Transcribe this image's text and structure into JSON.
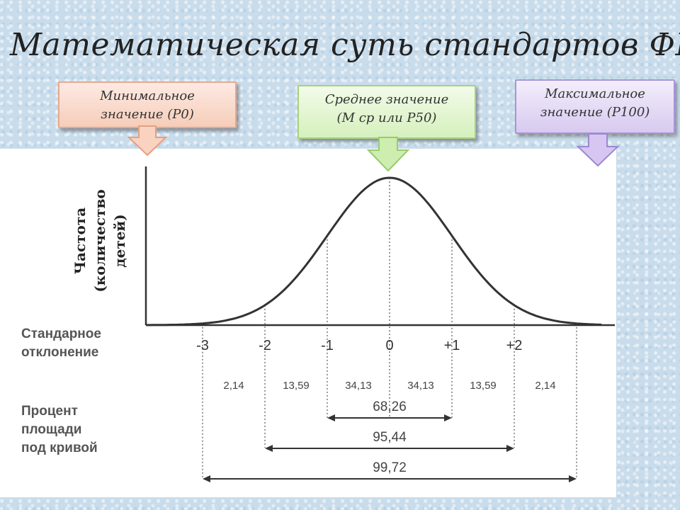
{
  "slide": {
    "title": "Математическая суть стандартов ФР:"
  },
  "callouts": {
    "min": {
      "line1": "Минимальное",
      "line2": "значение (P0)",
      "color": "#f6cdb9"
    },
    "mid": {
      "line1": "Среднее значение",
      "line2": "(М ср или P50)",
      "color": "#d6f0bd"
    },
    "max": {
      "line1": "Максимальное",
      "line2": "значение (P100)",
      "color": "#d8caf0"
    }
  },
  "chart_data": {
    "type": "area",
    "ylabel_lines": [
      "Частота",
      "(количество",
      "детей)"
    ],
    "xlabel_lines": [
      "Стандарное",
      "отклонение"
    ],
    "area_label_lines": [
      "Процент",
      "площади",
      "под кривой"
    ],
    "x_ticks": [
      "-3",
      "-2",
      "-1",
      "0",
      "+1",
      "+2"
    ],
    "x_tick_values": [
      -3,
      -2,
      -1,
      0,
      1,
      2
    ],
    "xlim": [
      -3.9,
      3.4
    ],
    "segments": [
      {
        "from": -3,
        "to": -2,
        "label": "2,14"
      },
      {
        "from": -2,
        "to": -1,
        "label": "13,59"
      },
      {
        "from": -1,
        "to": 0,
        "label": "34,13"
      },
      {
        "from": 0,
        "to": 1,
        "label": "34,13"
      },
      {
        "from": 1,
        "to": 2,
        "label": "13,59"
      },
      {
        "from": 2,
        "to": 3,
        "label": "2,14"
      }
    ],
    "ranges": [
      {
        "from": -1,
        "to": 1,
        "label": "68,26"
      },
      {
        "from": -2,
        "to": 2,
        "label": "95,44"
      },
      {
        "from": -3,
        "to": 3,
        "label": "99,72"
      }
    ]
  }
}
